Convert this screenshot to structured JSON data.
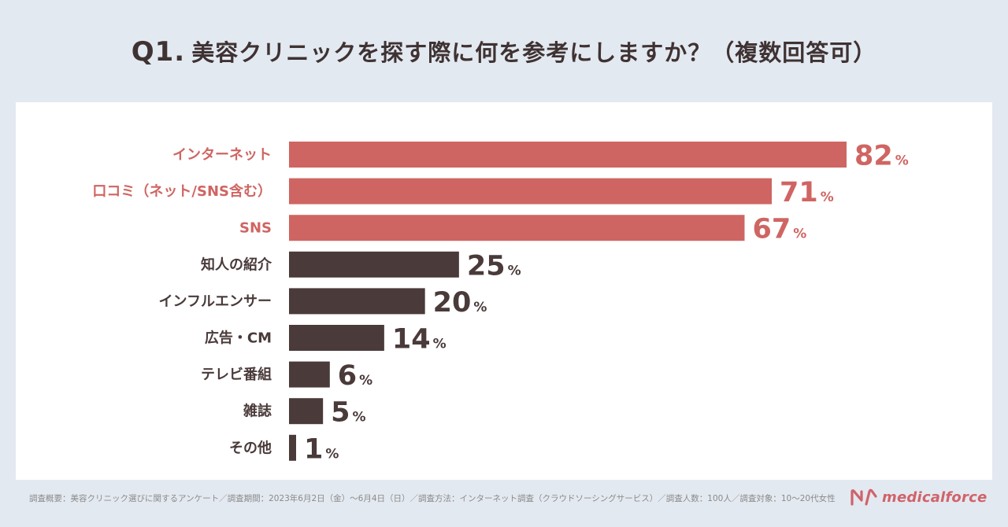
{
  "title": {
    "prefix": "Q1.",
    "text": "美容クリニックを探す際に何を参考にしますか？（複数回答可）"
  },
  "colors": {
    "highlight": "#cf6562",
    "default": "#4a3a3a",
    "brand": "#d0636a",
    "background": "#e3e9f1",
    "panel": "#ffffff"
  },
  "chart_data": {
    "type": "bar",
    "orientation": "horizontal",
    "unit": "%",
    "categories": [
      "インターネット",
      "口コミ（ネット/SNS含む）",
      "SNS",
      "知人の紹介",
      "インフルエンサー",
      "広告・CM",
      "テレビ番組",
      "雑誌",
      "その他"
    ],
    "values": [
      82,
      71,
      67,
      25,
      20,
      14,
      6,
      5,
      1
    ],
    "highlighted": [
      true,
      true,
      true,
      false,
      false,
      false,
      false,
      false,
      false
    ],
    "xlim": [
      0,
      82
    ],
    "grid": false,
    "legend": "none"
  },
  "footer": {
    "note": "調査概要：美容クリニック選びに関するアンケート／調査期間：2023年6月2日（金）〜6月4日（日）／調査方法：インターネット調査（クラウドソーシングサービス）／調査人数：100人／調査対象：10〜20代女性",
    "brand": "medicalforce",
    "logo_icon": "medicalforce-logo-icon"
  }
}
